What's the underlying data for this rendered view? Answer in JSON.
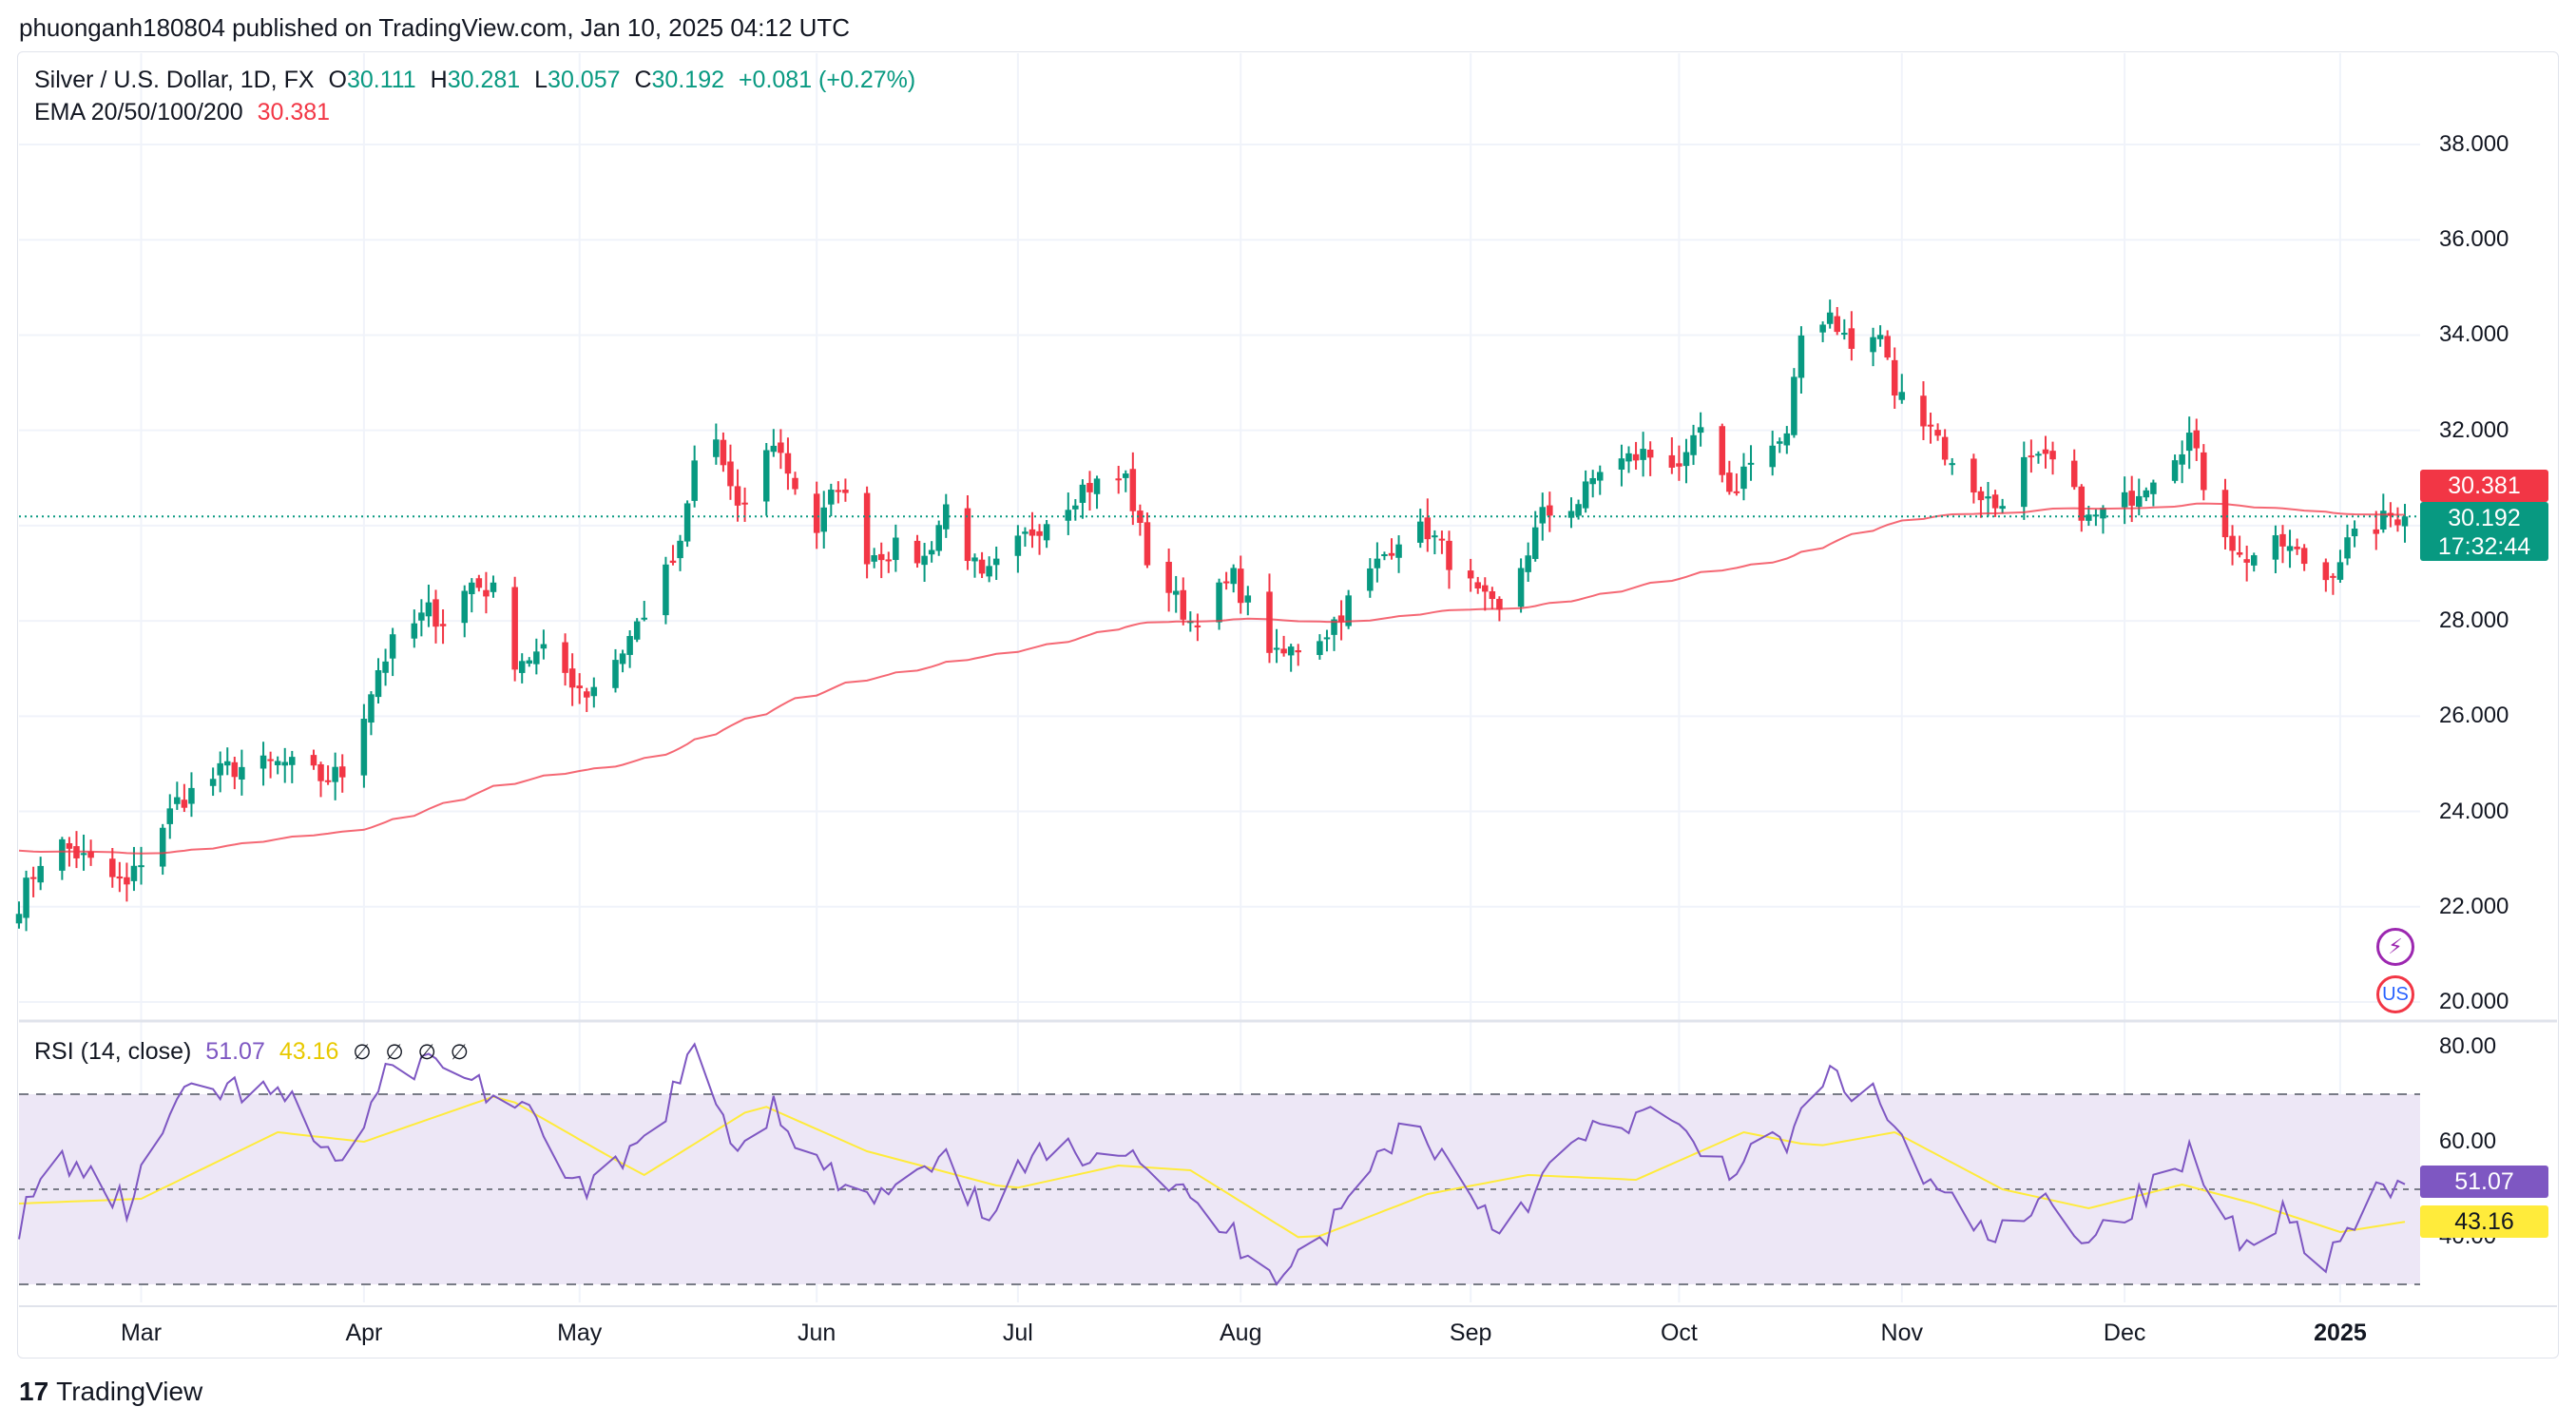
{
  "header": {
    "publisher": "phuonganh180804 published on TradingView.com, Jan 10, 2025 04:12 UTC"
  },
  "legend": {
    "symbol": "Silver / U.S. Dollar, 1D, FX",
    "open_label": "O",
    "open": "30.111",
    "high_label": "H",
    "high": "30.281",
    "low_label": "L",
    "low": "30.057",
    "close_label": "C",
    "close": "30.192",
    "change": "+0.081 (+0.27%)",
    "ema_label": "EMA 20/50/100/200",
    "ema_value": "30.381"
  },
  "rsi_legend": {
    "label": "RSI (14, close)",
    "rsi_value": "51.07",
    "ma_value": "43.16",
    "hidden_icons": [
      "∅",
      "∅",
      "∅",
      "∅"
    ]
  },
  "badges": {
    "ema": "30.381",
    "price": "30.192",
    "countdown": "17:32:44",
    "rsi": "51.07",
    "rsi_ma": "43.16"
  },
  "icons": {
    "bolt": "⚡",
    "flag": "US"
  },
  "footer": {
    "brand": "TradingView",
    "brand_mark": "17"
  },
  "colors": {
    "up": "#089981",
    "down": "#f23645",
    "ema": "#f23645",
    "rsi": "#7e57c2",
    "rsi_ma": "#ffeb3b",
    "rsi_band": "#ede7f6",
    "grid": "#f0f3fa"
  },
  "chart_data": [
    {
      "type": "candlestick",
      "title": "Silver / U.S. Dollar, 1D, FX",
      "ylim": [
        19.8,
        39.5
      ],
      "y_ticks": [
        "38.000",
        "36.000",
        "34.000",
        "32.000",
        "28.000",
        "26.000",
        "24.000",
        "22.000",
        "20.000"
      ],
      "x_ticks": [
        "Mar",
        "Apr",
        "May",
        "Jun",
        "Jul",
        "Aug",
        "Sep",
        "Oct",
        "Nov",
        "Dec",
        "2025"
      ],
      "x_start": "2024-02-13",
      "x_end": "2025-01-10",
      "close_keypoints": [
        [
          "2024-02-13",
          22.1
        ],
        [
          "2024-02-16",
          23.0
        ],
        [
          "2024-02-19",
          23.3
        ],
        [
          "2024-02-28",
          22.4
        ],
        [
          "2024-03-01",
          23.0
        ],
        [
          "2024-03-06",
          24.2
        ],
        [
          "2024-03-13",
          24.9
        ],
        [
          "2024-03-21",
          25.0
        ],
        [
          "2024-03-26",
          24.7
        ],
        [
          "2024-03-29",
          24.8
        ],
        [
          "2024-04-03",
          27.0
        ],
        [
          "2024-04-05",
          27.5
        ],
        [
          "2024-04-10",
          28.2
        ],
        [
          "2024-04-12",
          28.0
        ],
        [
          "2024-04-16",
          28.8
        ],
        [
          "2024-04-19",
          28.6
        ],
        [
          "2024-04-22",
          27.2
        ],
        [
          "2024-04-26",
          27.3
        ],
        [
          "2024-05-02",
          26.5
        ],
        [
          "2024-05-07",
          27.4
        ],
        [
          "2024-05-10",
          28.2
        ],
        [
          "2024-05-15",
          29.5
        ],
        [
          "2024-05-17",
          31.3
        ],
        [
          "2024-05-20",
          31.8
        ],
        [
          "2024-05-23",
          30.2
        ],
        [
          "2024-05-28",
          31.8
        ],
        [
          "2024-06-03",
          29.9
        ],
        [
          "2024-06-06",
          30.9
        ],
        [
          "2024-06-10",
          29.4
        ],
        [
          "2024-06-14",
          29.5
        ],
        [
          "2024-06-18",
          29.3
        ],
        [
          "2024-06-21",
          30.4
        ],
        [
          "2024-06-26",
          28.8
        ],
        [
          "2024-07-03",
          29.9
        ],
        [
          "2024-07-10",
          30.8
        ],
        [
          "2024-07-16",
          31.0
        ],
        [
          "2024-07-19",
          29.3
        ],
        [
          "2024-07-25",
          28.0
        ],
        [
          "2024-07-31",
          28.9
        ],
        [
          "2024-08-06",
          27.2
        ],
        [
          "2024-08-13",
          27.8
        ],
        [
          "2024-08-19",
          29.0
        ],
        [
          "2024-08-23",
          29.8
        ],
        [
          "2024-08-27",
          29.9
        ],
        [
          "2024-09-03",
          28.5
        ],
        [
          "2024-09-06",
          28.1
        ],
        [
          "2024-09-12",
          30.2
        ],
        [
          "2024-09-17",
          30.5
        ],
        [
          "2024-09-20",
          31.2
        ],
        [
          "2024-09-26",
          31.5
        ],
        [
          "2024-10-02",
          31.3
        ],
        [
          "2024-10-04",
          32.0
        ],
        [
          "2024-10-08",
          30.5
        ],
        [
          "2024-10-11",
          31.5
        ],
        [
          "2024-10-16",
          31.8
        ],
        [
          "2024-10-18",
          34.0
        ],
        [
          "2024-10-22",
          34.5
        ],
        [
          "2024-10-25",
          33.7
        ],
        [
          "2024-10-29",
          34.0
        ],
        [
          "2024-10-31",
          32.8
        ],
        [
          "2024-11-05",
          32.2
        ],
        [
          "2024-11-08",
          31.2
        ],
        [
          "2024-11-14",
          30.4
        ],
        [
          "2024-11-18",
          31.3
        ],
        [
          "2024-11-22",
          31.3
        ],
        [
          "2024-11-27",
          30.1
        ],
        [
          "2024-12-02",
          30.5
        ],
        [
          "2024-12-06",
          31.1
        ],
        [
          "2024-12-11",
          31.9
        ],
        [
          "2024-12-13",
          30.9
        ],
        [
          "2024-12-18",
          29.3
        ],
        [
          "2024-12-20",
          29.4
        ],
        [
          "2024-12-24",
          29.6
        ],
        [
          "2024-12-30",
          28.9
        ],
        [
          "2025-01-02",
          29.6
        ],
        [
          "2025-01-06",
          30.0
        ],
        [
          "2025-01-08",
          30.2
        ],
        [
          "2025-01-10",
          30.192
        ]
      ]
    },
    {
      "type": "line",
      "title": "RSI (14, close)",
      "ylim": [
        25,
        85
      ],
      "y_ticks": [
        "80.00",
        "60.00",
        "40.00"
      ],
      "levels": [
        70,
        50,
        30
      ],
      "series": [
        {
          "name": "RSI",
          "keypoints": [
            [
              "2024-02-13",
              43
            ],
            [
              "2024-02-19",
              57
            ],
            [
              "2024-02-28",
              46
            ],
            [
              "2024-03-06",
              68
            ],
            [
              "2024-03-13",
              71
            ],
            [
              "2024-03-21",
              69
            ],
            [
              "2024-03-29",
              55
            ],
            [
              "2024-04-05",
              76
            ],
            [
              "2024-04-12",
              77
            ],
            [
              "2024-04-19",
              70
            ],
            [
              "2024-04-26",
              62
            ],
            [
              "2024-05-02",
              48
            ],
            [
              "2024-05-10",
              60
            ],
            [
              "2024-05-17",
              78
            ],
            [
              "2024-05-23",
              59
            ],
            [
              "2024-05-28",
              68
            ],
            [
              "2024-06-03",
              55
            ],
            [
              "2024-06-10",
              47
            ],
            [
              "2024-06-21",
              55
            ],
            [
              "2024-06-26",
              45
            ],
            [
              "2024-07-03",
              56
            ],
            [
              "2024-07-16",
              60
            ],
            [
              "2024-07-25",
              47
            ],
            [
              "2024-08-06",
              33
            ],
            [
              "2024-08-13",
              41
            ],
            [
              "2024-08-23",
              63
            ],
            [
              "2024-08-27",
              61
            ],
            [
              "2024-09-06",
              42
            ],
            [
              "2024-09-17",
              60
            ],
            [
              "2024-09-26",
              66
            ],
            [
              "2024-10-08",
              55
            ],
            [
              "2024-10-16",
              60
            ],
            [
              "2024-10-22",
              74
            ],
            [
              "2024-10-29",
              68
            ],
            [
              "2024-11-05",
              50
            ],
            [
              "2024-11-14",
              39
            ],
            [
              "2024-11-22",
              48
            ],
            [
              "2024-11-27",
              40
            ],
            [
              "2024-12-06",
              50
            ],
            [
              "2024-12-11",
              57
            ],
            [
              "2024-12-18",
              40
            ],
            [
              "2024-12-24",
              45
            ],
            [
              "2024-12-30",
              35
            ],
            [
              "2025-01-06",
              48
            ],
            [
              "2025-01-10",
              51.07
            ]
          ]
        },
        {
          "name": "RSI-based MA",
          "keypoints": [
            [
              "2024-02-13",
              47
            ],
            [
              "2024-03-01",
              48
            ],
            [
              "2024-03-20",
              62
            ],
            [
              "2024-04-01",
              60
            ],
            [
              "2024-04-20",
              70
            ],
            [
              "2024-05-05",
              57
            ],
            [
              "2024-05-10",
              53
            ],
            [
              "2024-05-26",
              68
            ],
            [
              "2024-06-10",
              58
            ],
            [
              "2024-06-30",
              50
            ],
            [
              "2024-07-15",
              55
            ],
            [
              "2024-07-25",
              54
            ],
            [
              "2024-08-10",
              39
            ],
            [
              "2024-08-27",
              49
            ],
            [
              "2024-09-10",
              53
            ],
            [
              "2024-09-25",
              52
            ],
            [
              "2024-10-10",
              62
            ],
            [
              "2024-10-20",
              59
            ],
            [
              "2024-10-31",
              62
            ],
            [
              "2024-11-15",
              50
            ],
            [
              "2024-11-27",
              46
            ],
            [
              "2024-12-10",
              51
            ],
            [
              "2024-12-20",
              47
            ],
            [
              "2025-01-01",
              41
            ],
            [
              "2025-01-10",
              43.16
            ]
          ]
        }
      ]
    }
  ]
}
